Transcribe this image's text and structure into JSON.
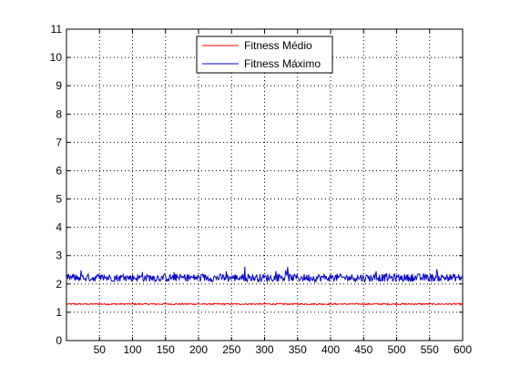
{
  "chart_data": {
    "type": "line",
    "title": "",
    "xlabel": "",
    "ylabel": "",
    "xlim": [
      0,
      600
    ],
    "ylim": [
      0,
      11
    ],
    "xticks": [
      50,
      100,
      150,
      200,
      250,
      300,
      350,
      400,
      450,
      500,
      550,
      600
    ],
    "yticks": [
      0,
      1,
      2,
      3,
      4,
      5,
      6,
      7,
      8,
      9,
      10,
      11
    ],
    "grid": true,
    "legend_position": "top-center",
    "series": [
      {
        "name": "Fitness Médio",
        "color": "#ff0000",
        "x_range": [
          1,
          600
        ],
        "mean": 1.29,
        "approx_range": [
          1.25,
          1.33
        ]
      },
      {
        "name": "Fitness Máximo",
        "color": "#0000cc",
        "x_range": [
          1,
          600
        ],
        "mean": 2.22,
        "approx_range": [
          2.0,
          2.6
        ],
        "peaks": [
          [
            270,
            2.62
          ],
          [
            335,
            2.6
          ],
          [
            115,
            2.42
          ]
        ]
      }
    ]
  }
}
